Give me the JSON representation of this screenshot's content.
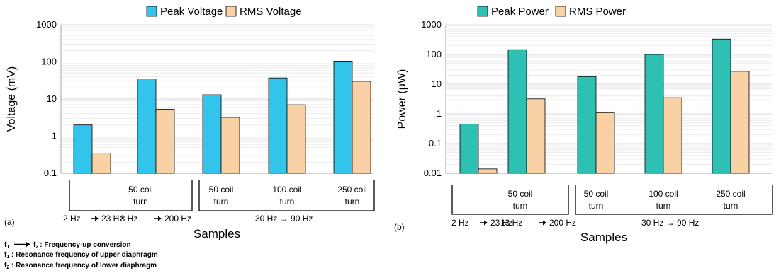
{
  "colors": {
    "peak_voltage": "#33c4ec",
    "rms": "#fad1a5",
    "peak_power": "#2fc0b4",
    "grid": "#d9d9d9",
    "axis": "#a6a6a6"
  },
  "chart_data": [
    {
      "type": "bar",
      "panel_label": "(a)",
      "ylabel": "Voltage (mV)",
      "xlabel": "Samples",
      "yscale": "log",
      "ylim": [
        0.1,
        1000
      ],
      "ytick_labels": [
        "0.1",
        "1",
        "10",
        "100",
        "1000"
      ],
      "legend_placement": "top",
      "grid": true,
      "series": [
        {
          "name": "Peak Voltage",
          "values": [
            2.0,
            35,
            13,
            37,
            105
          ]
        },
        {
          "name": "RMS Voltage",
          "values": [
            0.35,
            5.3,
            3.2,
            7.0,
            30
          ]
        }
      ],
      "group_labels": [
        {
          "line1": "50 coil",
          "line2": "turn"
        },
        {
          "line1": "50 coil",
          "line2": "turn"
        },
        {
          "line1": "100 coil",
          "line2": "turn"
        },
        {
          "line1": "250 coil",
          "line2": "turn"
        }
      ],
      "freq_labels": [
        "2 Hz",
        "23 Hz",
        "13 Hz",
        "200 Hz",
        "30 Hz → 90 Hz"
      ]
    },
    {
      "type": "bar",
      "panel_label": "(b)",
      "ylabel": "Power (μW)",
      "xlabel": "Samples",
      "yscale": "log",
      "ylim": [
        0.01,
        1000
      ],
      "ytick_labels": [
        "0.01",
        "0.1",
        "1",
        "10",
        "100",
        "1000"
      ],
      "legend_placement": "top",
      "grid": true,
      "series": [
        {
          "name": "Peak Power",
          "values": [
            0.45,
            145,
            18,
            100,
            330
          ]
        },
        {
          "name": "RMS Power",
          "values": [
            0.014,
            3.2,
            1.1,
            3.5,
            27
          ]
        }
      ],
      "group_labels": [
        {
          "line1": "50 coil",
          "line2": "turn"
        },
        {
          "line1": "50 coil",
          "line2": "turn"
        },
        {
          "line1": "100 coil",
          "line2": "turn"
        },
        {
          "line1": "250 coil",
          "line2": "turn"
        }
      ],
      "freq_labels": [
        "2 Hz",
        "23 Hz",
        "13 Hz",
        "200 Hz",
        "30 Hz → 90 Hz"
      ]
    }
  ],
  "notes": {
    "line1_f1": "f",
    "line1_sub1": "1",
    "line1_f2": "f",
    "line1_sub2": "2",
    "line1_text": ": Frequency-up conversion",
    "line2_f": "f",
    "line2_sub": "1",
    "line2_text": " : Resonance frequency of upper diaphragm",
    "line3_f": "f",
    "line3_sub": "2",
    "line3_text": " : Resonance frequency of lower diaphragm"
  }
}
